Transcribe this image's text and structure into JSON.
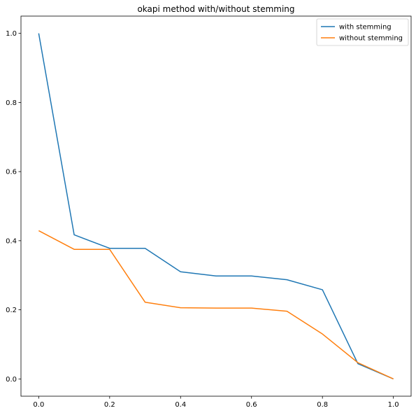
{
  "chart_data": {
    "type": "line",
    "title": "okapi method with/without stemming",
    "xlabel": "",
    "ylabel": "",
    "xlim": [
      -0.05,
      1.05
    ],
    "ylim": [
      -0.05,
      1.05
    ],
    "xticks": [
      0.0,
      0.2,
      0.4,
      0.6,
      0.8,
      1.0
    ],
    "xtick_labels": [
      "0.0",
      "0.2",
      "0.4",
      "0.6",
      "0.8",
      "1.0"
    ],
    "yticks": [
      0.0,
      0.2,
      0.4,
      0.6,
      0.8,
      1.0
    ],
    "ytick_labels": [
      "0.0",
      "0.2",
      "0.4",
      "0.6",
      "0.8",
      "1.0"
    ],
    "grid": false,
    "legend_position": "top-right",
    "x": [
      0.0,
      0.1,
      0.2,
      0.3,
      0.4,
      0.5,
      0.6,
      0.7,
      0.8,
      0.9,
      1.0
    ],
    "series": [
      {
        "name": "with stemming",
        "color": "#1f77b4",
        "values": [
          1.0,
          0.417,
          0.378,
          0.378,
          0.31,
          0.298,
          0.298,
          0.287,
          0.258,
          0.044,
          0.0
        ]
      },
      {
        "name": "without stemming",
        "color": "#ff7f0e",
        "values": [
          0.429,
          0.375,
          0.375,
          0.222,
          0.206,
          0.205,
          0.205,
          0.196,
          0.13,
          0.047,
          0.0
        ]
      }
    ]
  }
}
